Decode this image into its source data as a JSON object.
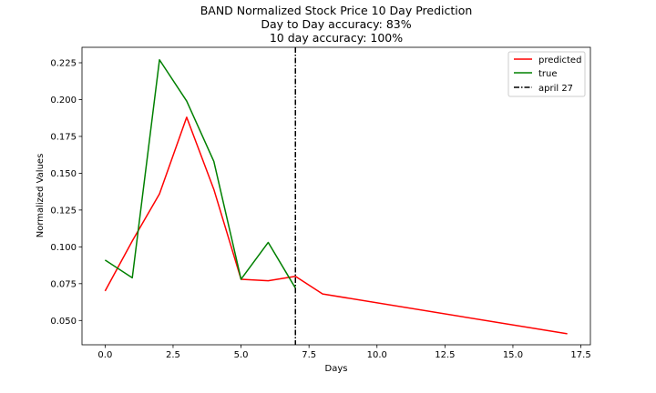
{
  "chart_data": {
    "type": "line",
    "title": [
      "BAND Normalized Stock Price 10 Day Prediction",
      "Day to Day accuracy: 83%",
      "10 day accuracy: 100%"
    ],
    "xlabel": "Days",
    "ylabel": "Normalized Values",
    "xlim": [
      -0.85,
      17.85
    ],
    "ylim": [
      0.0335,
      0.2355
    ],
    "xticks": [
      0.0,
      2.5,
      5.0,
      7.5,
      10.0,
      12.5,
      15.0,
      17.5
    ],
    "xtick_labels": [
      "0.0",
      "2.5",
      "5.0",
      "7.5",
      "10.0",
      "12.5",
      "15.0",
      "17.5"
    ],
    "yticks": [
      0.05,
      0.075,
      0.1,
      0.125,
      0.15,
      0.175,
      0.2,
      0.225
    ],
    "ytick_labels": [
      "0.050",
      "0.075",
      "0.100",
      "0.125",
      "0.150",
      "0.175",
      "0.200",
      "0.225"
    ],
    "grid": false,
    "legend_position": "top-right",
    "series": [
      {
        "name": "predicted",
        "color": "#ff0000",
        "style": "solid",
        "x": [
          0,
          1,
          2,
          3,
          4,
          5,
          6,
          7,
          8,
          17
        ],
        "y": [
          0.07,
          0.104,
          0.136,
          0.188,
          0.139,
          0.078,
          0.077,
          0.08,
          0.068,
          0.041
        ]
      },
      {
        "name": "true",
        "color": "#008000",
        "style": "solid",
        "x": [
          0,
          1,
          2,
          3,
          4,
          5,
          6,
          7
        ],
        "y": [
          0.091,
          0.079,
          0.227,
          0.199,
          0.158,
          0.078,
          0.103,
          0.072
        ]
      }
    ],
    "vlines": [
      {
        "name": "april 27",
        "x": 7,
        "color": "#000000",
        "style": "dashdot"
      }
    ]
  }
}
